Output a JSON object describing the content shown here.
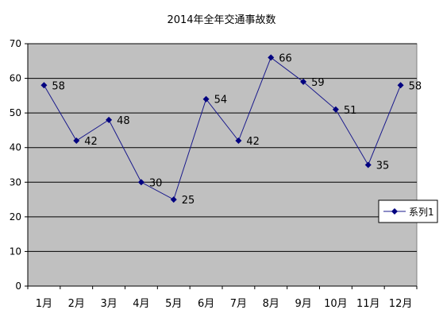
{
  "chart_data": {
    "type": "line",
    "title": "2014年全年交通事故数",
    "xlabel": "",
    "ylabel": "",
    "categories": [
      "1月",
      "2月",
      "3月",
      "4月",
      "5月",
      "6月",
      "7月",
      "8月",
      "9月",
      "10月",
      "11月",
      "12月"
    ],
    "series": [
      {
        "name": "系列1",
        "values": [
          58,
          42,
          48,
          30,
          25,
          54,
          42,
          66,
          59,
          51,
          35,
          58
        ]
      }
    ],
    "ylim": [
      0,
      70
    ],
    "yticks": [
      0,
      10,
      20,
      30,
      40,
      50,
      60,
      70
    ],
    "grid": true,
    "legend_position": "right",
    "data_labels": true,
    "colors": {
      "line": "#1a1a8c",
      "marker": "#000080",
      "plot_bg": "#c0c0c0",
      "grid": "#000000"
    }
  }
}
